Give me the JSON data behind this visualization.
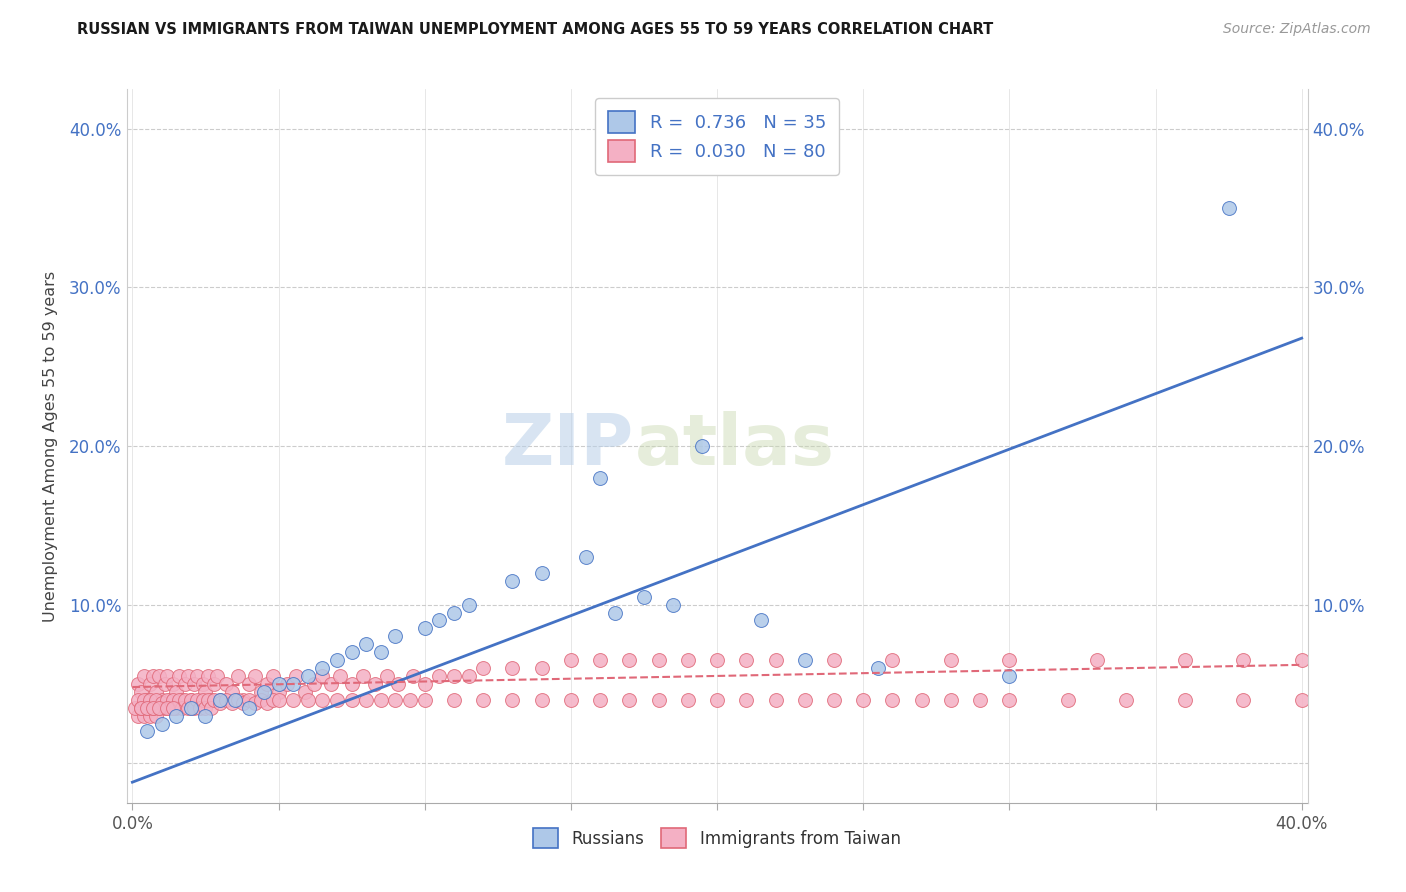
{
  "title": "RUSSIAN VS IMMIGRANTS FROM TAIWAN UNEMPLOYMENT AMONG AGES 55 TO 59 YEARS CORRELATION CHART",
  "source": "Source: ZipAtlas.com",
  "ylabel": "Unemployment Among Ages 55 to 59 years",
  "xlim": [
    -0.002,
    0.402
  ],
  "ylim": [
    -0.025,
    0.425
  ],
  "yticks": [
    0.0,
    0.1,
    0.2,
    0.3,
    0.4
  ],
  "ytick_labels": [
    "",
    "10.0%",
    "20.0%",
    "30.0%",
    "40.0%"
  ],
  "xticks": [
    0.0,
    0.05,
    0.1,
    0.15,
    0.2,
    0.25,
    0.3,
    0.35,
    0.4
  ],
  "xtick_labels": [
    "0.0%",
    "",
    "",
    "",
    "",
    "",
    "",
    "",
    "40.0%"
  ],
  "russian_R": "0.736",
  "russian_N": "35",
  "taiwan_R": "0.030",
  "taiwan_N": "80",
  "russian_face": "#aec8e8",
  "russian_edge": "#4472c4",
  "taiwan_face": "#f4b0c4",
  "taiwan_edge": "#e06878",
  "rus_line_x0": 0.0,
  "rus_line_y0": -0.012,
  "rus_line_x1": 0.4,
  "rus_line_y1": 0.268,
  "tai_line_x0": 0.0,
  "tai_line_y0": 0.048,
  "tai_line_x1": 0.4,
  "tai_line_y1": 0.062,
  "rus_x": [
    0.005,
    0.01,
    0.015,
    0.02,
    0.025,
    0.03,
    0.035,
    0.04,
    0.045,
    0.05,
    0.055,
    0.06,
    0.065,
    0.07,
    0.075,
    0.08,
    0.085,
    0.09,
    0.1,
    0.105,
    0.11,
    0.115,
    0.13,
    0.14,
    0.155,
    0.16,
    0.165,
    0.175,
    0.185,
    0.195,
    0.215,
    0.23,
    0.255,
    0.3,
    0.375
  ],
  "rus_y": [
    0.02,
    0.025,
    0.03,
    0.035,
    0.03,
    0.04,
    0.04,
    0.035,
    0.045,
    0.05,
    0.05,
    0.055,
    0.06,
    0.065,
    0.07,
    0.075,
    0.07,
    0.08,
    0.085,
    0.09,
    0.095,
    0.1,
    0.115,
    0.12,
    0.13,
    0.18,
    0.095,
    0.105,
    0.1,
    0.2,
    0.09,
    0.065,
    0.06,
    0.055,
    0.35
  ],
  "tai_x": [
    0.002,
    0.003,
    0.004,
    0.005,
    0.006,
    0.007,
    0.008,
    0.009,
    0.01,
    0.011,
    0.012,
    0.013,
    0.014,
    0.015,
    0.016,
    0.017,
    0.018,
    0.019,
    0.02,
    0.021,
    0.022,
    0.023,
    0.024,
    0.025,
    0.026,
    0.027,
    0.028,
    0.029,
    0.03,
    0.032,
    0.034,
    0.036,
    0.038,
    0.04,
    0.042,
    0.044,
    0.046,
    0.048,
    0.05,
    0.053,
    0.056,
    0.059,
    0.062,
    0.065,
    0.068,
    0.071,
    0.075,
    0.079,
    0.083,
    0.087,
    0.091,
    0.096,
    0.1,
    0.105,
    0.11,
    0.115,
    0.12,
    0.13,
    0.14,
    0.15,
    0.16,
    0.17,
    0.18,
    0.19,
    0.2,
    0.21,
    0.22,
    0.24,
    0.26,
    0.28,
    0.3,
    0.33,
    0.36,
    0.38,
    0.4,
    0.002,
    0.004,
    0.006,
    0.008
  ],
  "tai_y": [
    0.05,
    0.045,
    0.055,
    0.04,
    0.05,
    0.055,
    0.045,
    0.055,
    0.04,
    0.05,
    0.055,
    0.04,
    0.05,
    0.045,
    0.055,
    0.04,
    0.05,
    0.055,
    0.04,
    0.05,
    0.055,
    0.04,
    0.05,
    0.045,
    0.055,
    0.04,
    0.05,
    0.055,
    0.04,
    0.05,
    0.045,
    0.055,
    0.04,
    0.05,
    0.055,
    0.045,
    0.05,
    0.055,
    0.045,
    0.05,
    0.055,
    0.045,
    0.05,
    0.055,
    0.05,
    0.055,
    0.05,
    0.055,
    0.05,
    0.055,
    0.05,
    0.055,
    0.05,
    0.055,
    0.055,
    0.055,
    0.06,
    0.06,
    0.06,
    0.065,
    0.065,
    0.065,
    0.065,
    0.065,
    0.065,
    0.065,
    0.065,
    0.065,
    0.065,
    0.065,
    0.065,
    0.065,
    0.065,
    0.065,
    0.065,
    0.03,
    0.03,
    0.03,
    0.03
  ],
  "tai_x2": [
    0.001,
    0.002,
    0.003,
    0.004,
    0.005,
    0.006,
    0.007,
    0.008,
    0.009,
    0.01,
    0.011,
    0.012,
    0.013,
    0.014,
    0.015,
    0.016,
    0.017,
    0.018,
    0.019,
    0.02,
    0.021,
    0.022,
    0.023,
    0.024,
    0.025,
    0.026,
    0.027,
    0.028,
    0.03,
    0.032,
    0.034,
    0.036,
    0.038,
    0.04,
    0.042,
    0.044,
    0.046,
    0.048,
    0.05,
    0.055,
    0.06,
    0.065,
    0.07,
    0.075,
    0.08,
    0.085,
    0.09,
    0.095,
    0.1,
    0.11,
    0.12,
    0.13,
    0.14,
    0.15,
    0.16,
    0.17,
    0.18,
    0.19,
    0.2,
    0.21,
    0.22,
    0.23,
    0.24,
    0.25,
    0.26,
    0.27,
    0.28,
    0.29,
    0.3,
    0.32,
    0.34,
    0.36,
    0.38,
    0.4,
    0.003,
    0.005,
    0.007,
    0.009,
    0.012,
    0.014
  ],
  "tai_y2": [
    0.035,
    0.04,
    0.035,
    0.04,
    0.035,
    0.04,
    0.035,
    0.04,
    0.035,
    0.038,
    0.035,
    0.04,
    0.035,
    0.04,
    0.035,
    0.04,
    0.035,
    0.04,
    0.035,
    0.04,
    0.035,
    0.04,
    0.035,
    0.04,
    0.035,
    0.04,
    0.035,
    0.04,
    0.038,
    0.04,
    0.038,
    0.04,
    0.038,
    0.04,
    0.038,
    0.04,
    0.038,
    0.04,
    0.04,
    0.04,
    0.04,
    0.04,
    0.04,
    0.04,
    0.04,
    0.04,
    0.04,
    0.04,
    0.04,
    0.04,
    0.04,
    0.04,
    0.04,
    0.04,
    0.04,
    0.04,
    0.04,
    0.04,
    0.04,
    0.04,
    0.04,
    0.04,
    0.04,
    0.04,
    0.04,
    0.04,
    0.04,
    0.04,
    0.04,
    0.04,
    0.04,
    0.04,
    0.04,
    0.04,
    0.035,
    0.035,
    0.035,
    0.035,
    0.035,
    0.035
  ]
}
